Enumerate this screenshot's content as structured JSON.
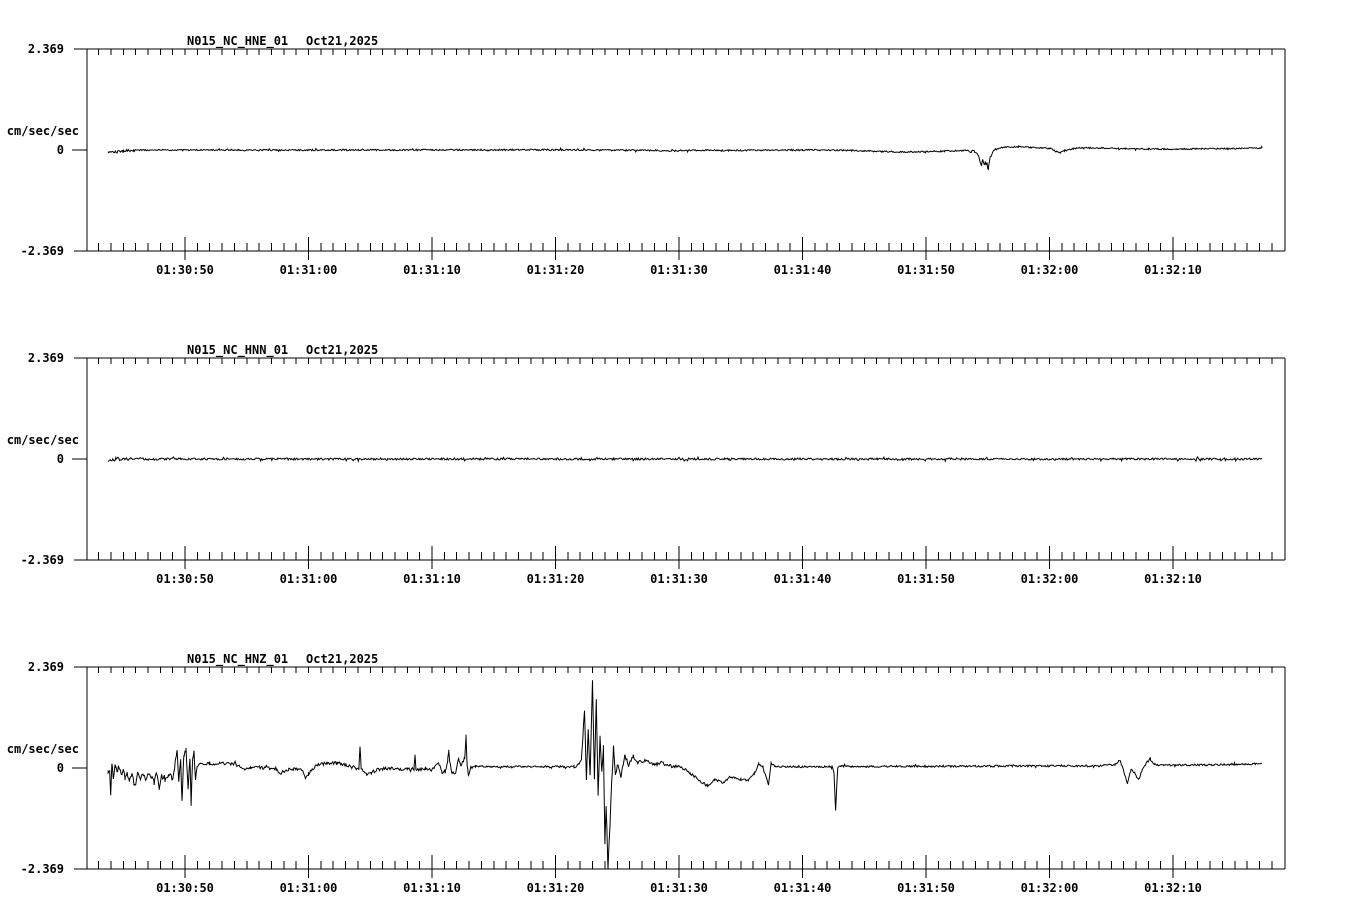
{
  "page": {
    "background": "#ffffff",
    "foreground": "#000000"
  },
  "x_axis": {
    "tick_labels": [
      "01:30:50",
      "01:31:00",
      "01:31:10",
      "01:31:20",
      "01:31:30",
      "01:31:40",
      "01:31:50",
      "01:32:00",
      "01:32:10"
    ]
  },
  "chart_data": [
    {
      "type": "line",
      "station": "N015_NC_HNE_01",
      "date": "Oct21,2025",
      "ylabel": "cm/sec/sec",
      "y_top_label": "2.369",
      "y_zero_label": "0",
      "y_bottom_label": "-2.369",
      "ylim": [
        -2.369,
        2.369
      ],
      "yticks": [
        2.369,
        0,
        -2.369
      ],
      "xtick_labels": [
        "01:30:50",
        "01:31:00",
        "01:31:10",
        "01:31:20",
        "01:31:30",
        "01:31:40",
        "01:31:50",
        "01:32:00",
        "01:32:10"
      ],
      "xtick_seconds": [
        0,
        10,
        20,
        30,
        40,
        50,
        60,
        70,
        80
      ],
      "minor_tick_every_s": 1,
      "t_range_s": [
        -6.2,
        87.2
      ],
      "baseline": [
        [
          -6.2,
          -0.05
        ],
        [
          -5.9,
          -0.03
        ],
        [
          -5.5,
          -0.04
        ],
        [
          -5.0,
          -0.02
        ],
        [
          -4.2,
          -0.01
        ],
        [
          -3.5,
          0
        ],
        [
          20,
          0
        ],
        [
          30,
          0.005
        ],
        [
          38,
          -0.01
        ],
        [
          39.5,
          -0.02
        ],
        [
          41,
          -0.005
        ],
        [
          44,
          -0.01
        ],
        [
          50,
          0
        ],
        [
          54,
          -0.01
        ],
        [
          56,
          -0.03
        ],
        [
          58,
          -0.045
        ],
        [
          60,
          -0.04
        ],
        [
          61.5,
          -0.025
        ],
        [
          63,
          -0.015
        ],
        [
          63.9,
          -0.03
        ],
        [
          64.25,
          -0.12
        ],
        [
          64.45,
          -0.33
        ],
        [
          64.6,
          -0.22
        ],
        [
          64.78,
          -0.4
        ],
        [
          64.95,
          -0.3
        ],
        [
          65.05,
          -0.42
        ],
        [
          65.2,
          -0.18
        ],
        [
          65.45,
          -0.02
        ],
        [
          65.8,
          0.04
        ],
        [
          66.5,
          0.065
        ],
        [
          67.5,
          0.075
        ],
        [
          68.5,
          0.06
        ],
        [
          69.4,
          0.05
        ],
        [
          70.1,
          0.03
        ],
        [
          70.55,
          -0.04
        ],
        [
          70.85,
          -0.06
        ],
        [
          71.2,
          -0.02
        ],
        [
          71.9,
          0.03
        ],
        [
          72.6,
          0.05
        ],
        [
          74,
          0.045
        ],
        [
          76,
          0.035
        ],
        [
          78,
          0.025
        ],
        [
          80,
          0.02
        ],
        [
          82,
          0.03
        ],
        [
          84,
          0.03
        ],
        [
          86,
          0.04
        ],
        [
          87.2,
          0.05
        ]
      ],
      "noise": [
        [
          -6.2,
          -4,
          0.03
        ],
        [
          -4,
          63,
          0.018
        ],
        [
          63,
          66,
          0.022
        ],
        [
          66,
          87.2,
          0.016
        ]
      ],
      "spikes": [
        [
          64.5,
          -0.06,
          0.1
        ],
        [
          64.8,
          0.1,
          0.07
        ],
        [
          65.0,
          -0.07,
          0.08
        ]
      ]
    },
    {
      "type": "line",
      "station": "N015_NC_HNN_01",
      "date": "Oct21,2025",
      "ylabel": "cm/sec/sec",
      "y_top_label": "2.369",
      "y_zero_label": "0",
      "y_bottom_label": "-2.369",
      "ylim": [
        -2.369,
        2.369
      ],
      "yticks": [
        2.369,
        0,
        -2.369
      ],
      "xtick_labels": [
        "01:30:50",
        "01:31:00",
        "01:31:10",
        "01:31:20",
        "01:31:30",
        "01:31:40",
        "01:31:50",
        "01:32:00",
        "01:32:10"
      ],
      "xtick_seconds": [
        0,
        10,
        20,
        30,
        40,
        50,
        60,
        70,
        80
      ],
      "minor_tick_every_s": 1,
      "t_range_s": [
        -6.2,
        87.2
      ],
      "baseline": [
        [
          -6.2,
          -0.02
        ],
        [
          -5.6,
          0
        ],
        [
          87.2,
          0
        ]
      ],
      "noise": [
        [
          -6.2,
          -5.2,
          0.055
        ],
        [
          -5.2,
          -2,
          0.03
        ],
        [
          -2,
          87.2,
          0.024
        ]
      ],
      "spikes": []
    },
    {
      "type": "line",
      "station": "N015_NC_HNZ_01",
      "date": "Oct21,2025",
      "ylabel": "cm/sec/sec",
      "y_top_label": "2.369",
      "y_zero_label": "0",
      "y_bottom_label": "-2.369",
      "ylim": [
        -2.369,
        2.369
      ],
      "yticks": [
        2.369,
        0,
        -2.369
      ],
      "xtick_labels": [
        "01:30:50",
        "01:31:00",
        "01:31:10",
        "01:31:20",
        "01:31:30",
        "01:31:40",
        "01:31:50",
        "01:32:00",
        "01:32:10"
      ],
      "xtick_seconds": [
        0,
        10,
        20,
        30,
        40,
        50,
        60,
        70,
        80
      ],
      "minor_tick_every_s": 1,
      "t_range_s": [
        -6.23,
        87.2
      ],
      "baseline": [
        [
          -6.23,
          -0.1
        ],
        [
          -6.1,
          -0.05
        ],
        [
          -6.02,
          -0.65
        ],
        [
          -5.92,
          0.15
        ],
        [
          -5.8,
          -0.25
        ],
        [
          -5.65,
          0.1
        ],
        [
          -5.5,
          -0.1
        ],
        [
          -5.35,
          0.05
        ],
        [
          -5.15,
          -0.2
        ],
        [
          -5.0,
          -0.05
        ],
        [
          -4.85,
          -0.25
        ],
        [
          -4.7,
          -0.1
        ],
        [
          -4.5,
          -0.3
        ],
        [
          -4.3,
          -0.15
        ],
        [
          -4.05,
          -0.45
        ],
        [
          -3.85,
          -0.1
        ],
        [
          -3.6,
          -0.25
        ],
        [
          -3.4,
          -0.1
        ],
        [
          -3.2,
          -0.3
        ],
        [
          -3.0,
          -0.15
        ],
        [
          -2.7,
          -0.2
        ],
        [
          -2.5,
          -0.35
        ],
        [
          -2.3,
          -0.1
        ],
        [
          -2.1,
          -0.5
        ],
        [
          -1.9,
          -0.2
        ],
        [
          -1.6,
          -0.3
        ],
        [
          -1.3,
          -0.15
        ],
        [
          -1.0,
          -0.25
        ],
        [
          -0.8,
          0.1
        ],
        [
          -0.65,
          0.45
        ],
        [
          -0.5,
          -0.3
        ],
        [
          -0.35,
          0.2
        ],
        [
          -0.24,
          -0.77
        ],
        [
          -0.1,
          0.3
        ],
        [
          0.08,
          0.45
        ],
        [
          0.25,
          -0.5
        ],
        [
          0.4,
          0.25
        ],
        [
          0.49,
          -0.85
        ],
        [
          0.62,
          0.2
        ],
        [
          0.73,
          0.4
        ],
        [
          0.85,
          -0.3
        ],
        [
          1.0,
          0.05
        ],
        [
          1.2,
          0.12
        ],
        [
          2.0,
          0.1
        ],
        [
          3.0,
          0.11
        ],
        [
          4.0,
          0.09
        ],
        [
          4.4,
          0.03
        ],
        [
          4.8,
          -0.02
        ],
        [
          5.3,
          0.0
        ],
        [
          6.0,
          0.01
        ],
        [
          7.0,
          -0.01
        ],
        [
          7.45,
          -0.02
        ],
        [
          7.7,
          -0.13
        ],
        [
          8.0,
          -0.1
        ],
        [
          8.4,
          -0.04
        ],
        [
          9.0,
          -0.02
        ],
        [
          9.55,
          -0.05
        ],
        [
          9.75,
          -0.23
        ],
        [
          10.0,
          -0.15
        ],
        [
          10.3,
          -0.02
        ],
        [
          10.8,
          0.08
        ],
        [
          11.5,
          0.11
        ],
        [
          12.3,
          0.12
        ],
        [
          13.0,
          0.08
        ],
        [
          13.5,
          0.02
        ],
        [
          14.0,
          -0.02
        ],
        [
          14.4,
          -0.04
        ],
        [
          14.7,
          -0.16
        ],
        [
          15.1,
          -0.12
        ],
        [
          15.5,
          -0.04
        ],
        [
          16.0,
          -0.02
        ],
        [
          16.6,
          0.0
        ],
        [
          17.3,
          -0.03
        ],
        [
          18.0,
          -0.01
        ],
        [
          18.9,
          -0.04
        ],
        [
          19.5,
          -0.02
        ],
        [
          20.0,
          -0.04
        ],
        [
          20.55,
          0.12
        ],
        [
          20.8,
          -0.12
        ],
        [
          21.1,
          -0.06
        ],
        [
          21.35,
          0.3
        ],
        [
          21.6,
          -0.1
        ],
        [
          21.9,
          -0.12
        ],
        [
          22.15,
          0.22
        ],
        [
          22.35,
          0.05
        ],
        [
          22.75,
          0.3
        ],
        [
          22.95,
          -0.2
        ],
        [
          23.15,
          0.02
        ],
        [
          23.5,
          0.04
        ],
        [
          25,
          0.03
        ],
        [
          28,
          0.035
        ],
        [
          31.5,
          0.03
        ],
        [
          31.85,
          0.06
        ],
        [
          32.1,
          0.2
        ],
        [
          32.35,
          1.35
        ],
        [
          32.5,
          -0.25
        ],
        [
          32.65,
          0.9
        ],
        [
          32.8,
          -0.2
        ],
        [
          33.0,
          2.1
        ],
        [
          33.15,
          -0.3
        ],
        [
          33.3,
          1.6
        ],
        [
          33.45,
          -0.65
        ],
        [
          33.6,
          0.75
        ],
        [
          33.75,
          -0.1
        ],
        [
          33.88,
          0.5
        ],
        [
          34.0,
          -1.75
        ],
        [
          34.1,
          -0.85
        ],
        [
          34.25,
          -2.33
        ],
        [
          34.42,
          -1.3
        ],
        [
          34.55,
          -0.3
        ],
        [
          34.7,
          0.5
        ],
        [
          34.85,
          -0.15
        ],
        [
          35.05,
          0.1
        ],
        [
          35.3,
          -0.2
        ],
        [
          35.6,
          0.3
        ],
        [
          35.9,
          0.1
        ],
        [
          36.3,
          0.28
        ],
        [
          36.65,
          0.12
        ],
        [
          37.3,
          0.18
        ],
        [
          38.0,
          0.08
        ],
        [
          38.6,
          0.12
        ],
        [
          39.3,
          0.05
        ],
        [
          40.2,
          0.02
        ],
        [
          40.9,
          -0.12
        ],
        [
          41.6,
          -0.28
        ],
        [
          42.3,
          -0.42
        ],
        [
          42.9,
          -0.28
        ],
        [
          43.6,
          -0.34
        ],
        [
          44.2,
          -0.2
        ],
        [
          45.0,
          -0.26
        ],
        [
          45.6,
          -0.3
        ],
        [
          46.1,
          -0.12
        ],
        [
          46.45,
          0.1
        ],
        [
          46.8,
          0.02
        ],
        [
          47.25,
          -0.4
        ],
        [
          47.45,
          0.12
        ],
        [
          47.8,
          0.03
        ],
        [
          49,
          0.03
        ],
        [
          52.4,
          0.03
        ],
        [
          52.55,
          -0.1
        ],
        [
          52.68,
          -0.98
        ],
        [
          52.85,
          0.0
        ],
        [
          53.1,
          0.05
        ],
        [
          54,
          0.03
        ],
        [
          58,
          0.04
        ],
        [
          62,
          0.04
        ],
        [
          66,
          0.045
        ],
        [
          70,
          0.05
        ],
        [
          74,
          0.05
        ],
        [
          75.3,
          0.08
        ],
        [
          75.7,
          0.18
        ],
        [
          76.0,
          -0.05
        ],
        [
          76.3,
          -0.38
        ],
        [
          76.6,
          -0.03
        ],
        [
          76.9,
          -0.12
        ],
        [
          77.2,
          -0.28
        ],
        [
          77.5,
          -0.06
        ],
        [
          77.85,
          0.12
        ],
        [
          78.15,
          0.22
        ],
        [
          78.5,
          0.06
        ],
        [
          79.2,
          0.07
        ],
        [
          82,
          0.07
        ],
        [
          85,
          0.08
        ],
        [
          87.2,
          0.1
        ]
      ],
      "noise": [
        [
          -6.23,
          1.0,
          0.05
        ],
        [
          1.0,
          23.1,
          0.035
        ],
        [
          23.1,
          31.5,
          0.02
        ],
        [
          31.5,
          39.5,
          0.04
        ],
        [
          39.5,
          47,
          0.03
        ],
        [
          47,
          87.2,
          0.022
        ]
      ],
      "spikes": [
        [
          14.17,
          0.54,
          0.1
        ],
        [
          18.62,
          0.32,
          0.08
        ],
        [
          21.35,
          0.1,
          0.08
        ],
        [
          22.75,
          0.45,
          0.1
        ]
      ]
    }
  ]
}
